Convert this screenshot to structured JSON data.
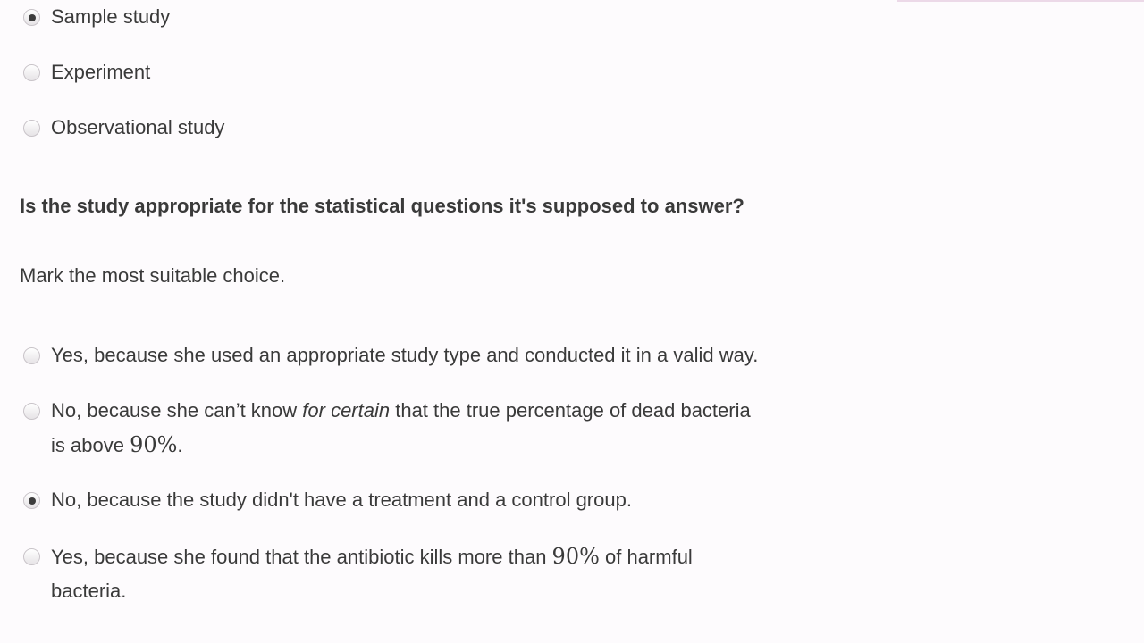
{
  "study_type_options": [
    {
      "label": "Sample study",
      "checked": true
    },
    {
      "label": "Experiment",
      "checked": false
    },
    {
      "label": "Observational study",
      "checked": false
    }
  ],
  "question": "Is the study appropriate for the statistical questions it's supposed to answer?",
  "instruction": "Mark the most suitable choice.",
  "answers": {
    "a1": {
      "text": "Yes, because she used an appropriate study type and conducted it in a valid way.",
      "checked": false
    },
    "a2": {
      "part1": "No, because she can’t know ",
      "emphasis": "for certain",
      "part2": " that the true percentage of dead bacteria",
      "part3": "is above ",
      "math": "90%",
      "part4": ".",
      "checked": false
    },
    "a3": {
      "text": "No, because the study didn't have a treatment and a control group.",
      "checked": true
    },
    "a4": {
      "part1": "Yes, because she found that the antibiotic kills more than ",
      "math": "90%",
      "part2": " of harmful",
      "part3": "bacteria.",
      "checked": false
    }
  }
}
